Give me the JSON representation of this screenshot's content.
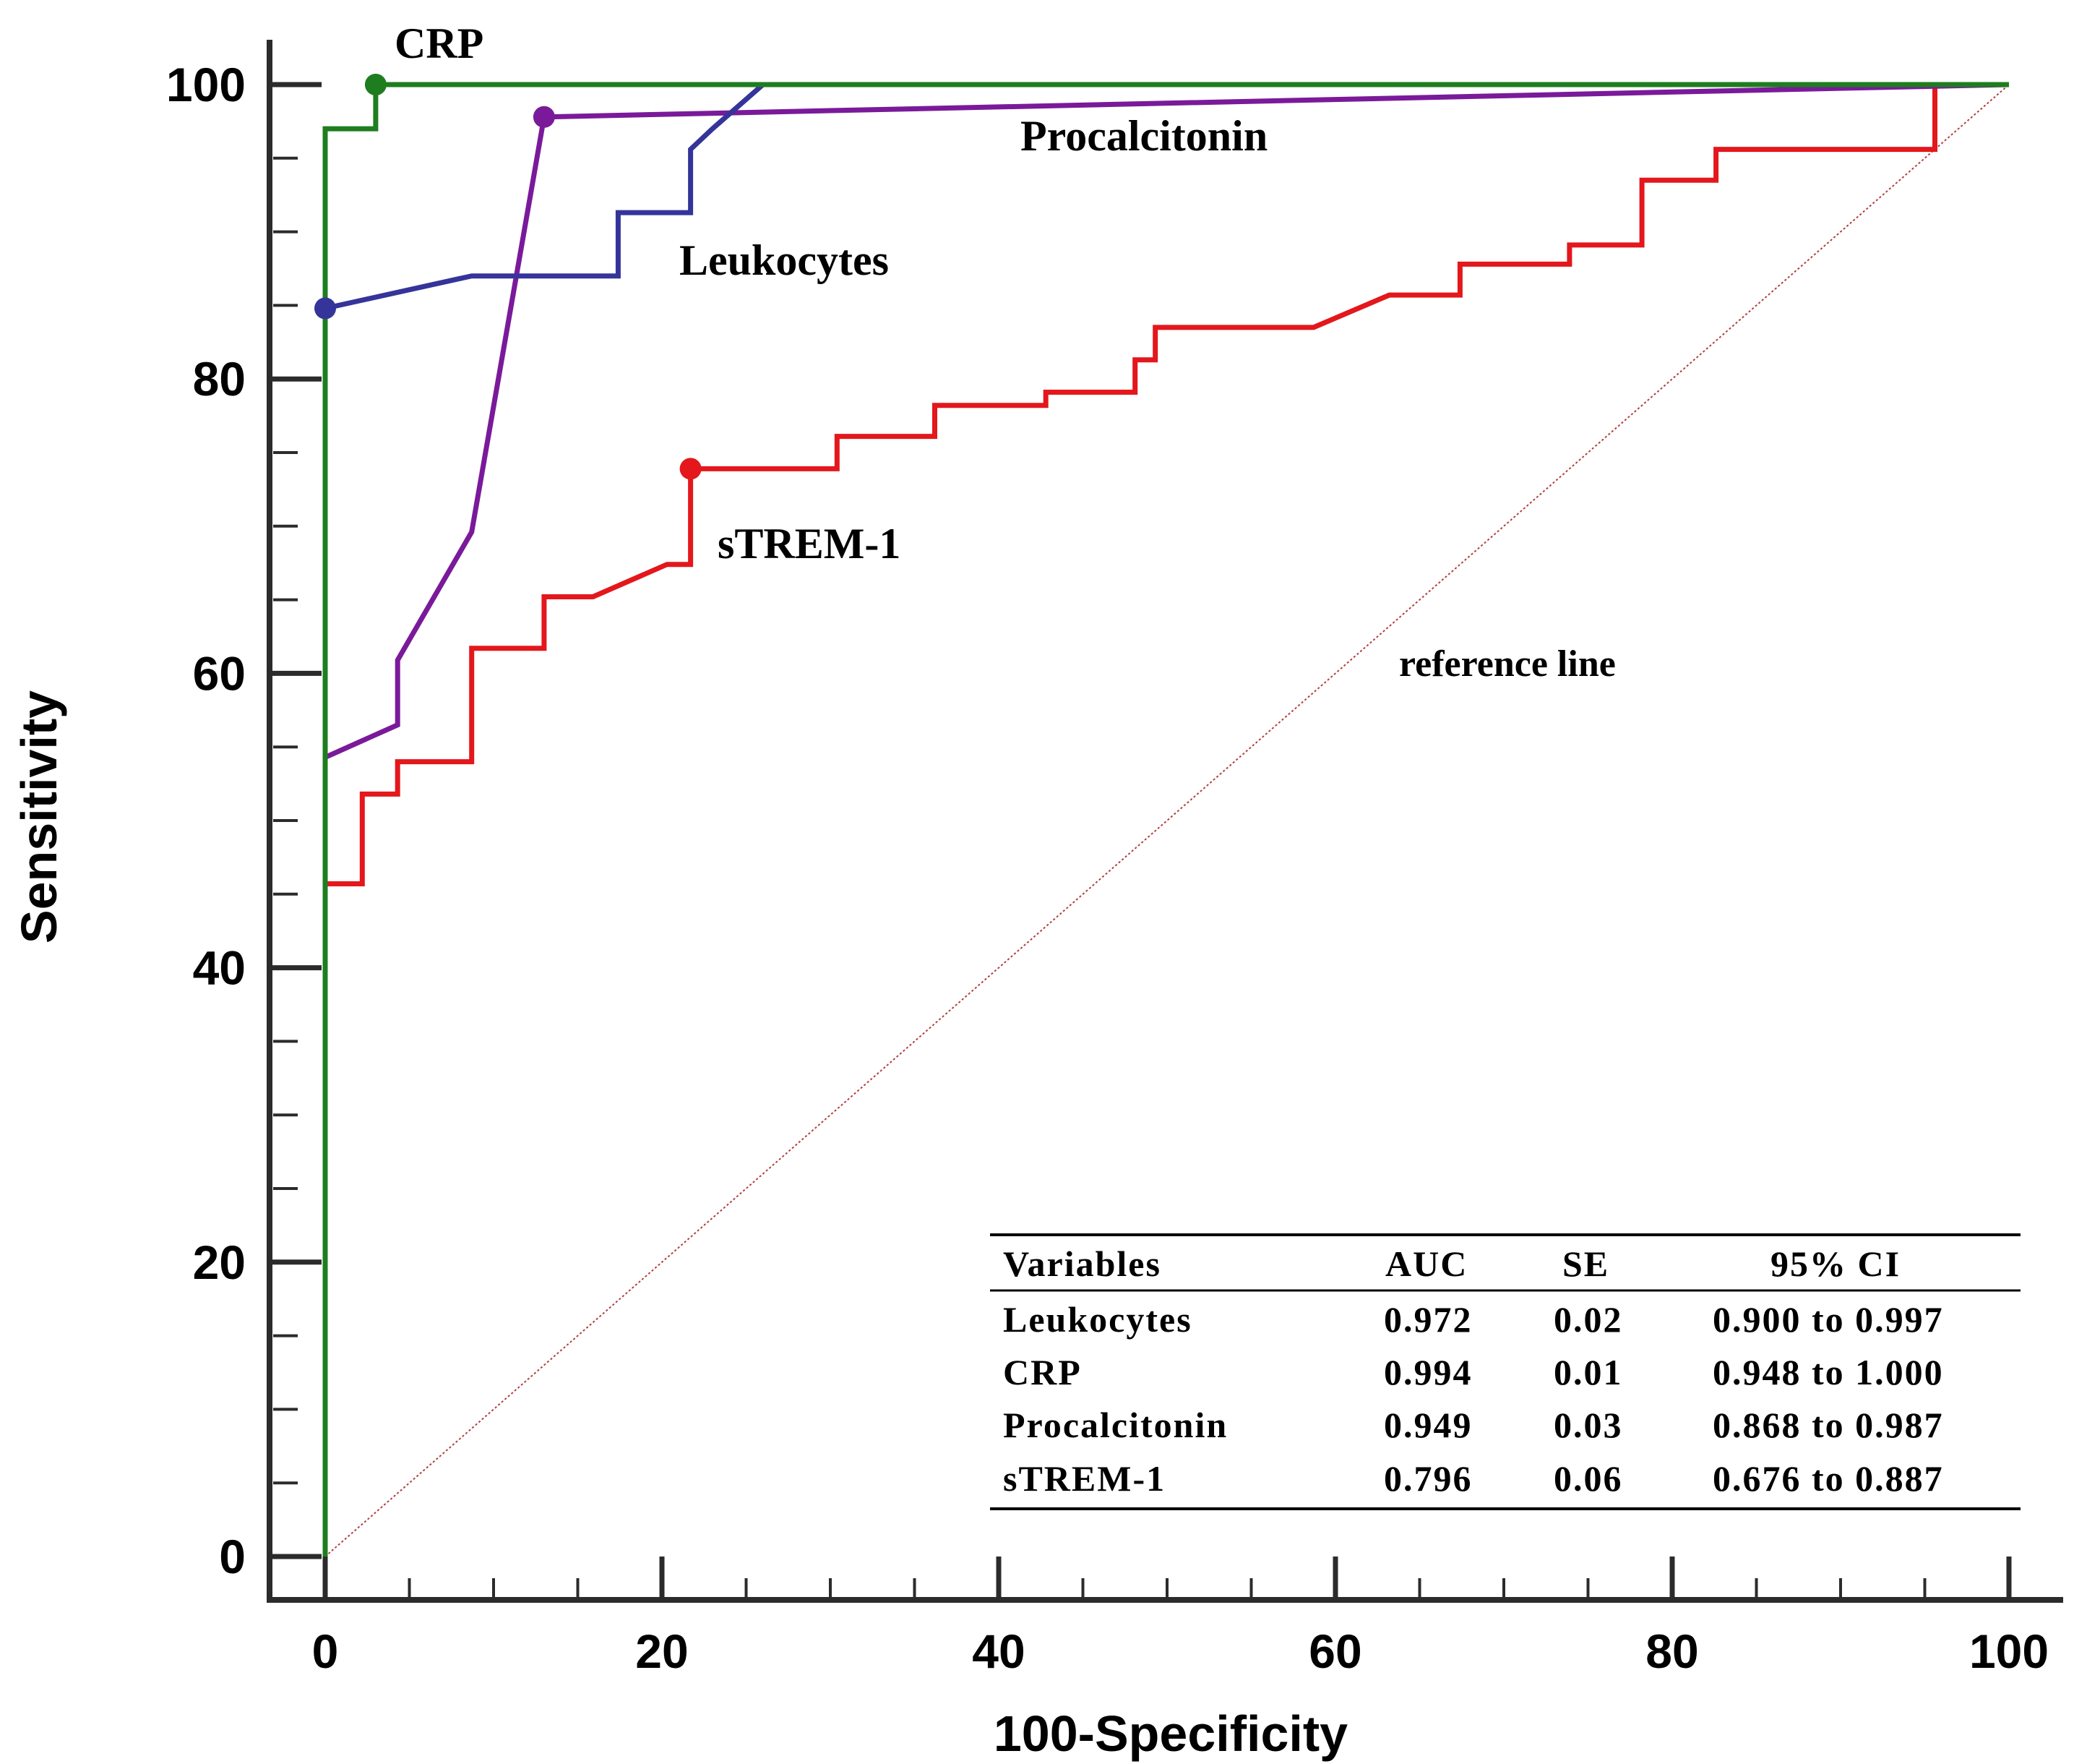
{
  "chart_data": {
    "type": "line",
    "title": "",
    "xlabel": "100-Specificity",
    "ylabel": "Sensitivity",
    "xlim": [
      0,
      100
    ],
    "ylim": [
      0,
      100
    ],
    "xticks": [
      "0",
      "20",
      "40",
      "60",
      "80",
      "100"
    ],
    "yticks": [
      "0",
      "20",
      "40",
      "60",
      "80",
      "100"
    ],
    "grid": false,
    "series": [
      {
        "name": "CRP",
        "color": "#1e7d1e",
        "points": [
          [
            0,
            0
          ],
          [
            0,
            97
          ],
          [
            3,
            97
          ],
          [
            3,
            100
          ],
          [
            100,
            100
          ]
        ],
        "marker": [
          3,
          100
        ]
      },
      {
        "name": "Leukocytes",
        "color": "#35349a",
        "points": [
          [
            0,
            0
          ],
          [
            0,
            84.8
          ],
          [
            8.7,
            87
          ],
          [
            17.4,
            87
          ],
          [
            17.4,
            91.3
          ],
          [
            21.7,
            91.3
          ],
          [
            21.7,
            95.6
          ],
          [
            23,
            97
          ],
          [
            26,
            100
          ],
          [
            100,
            100
          ]
        ],
        "marker": [
          0,
          84.8
        ]
      },
      {
        "name": "Procalcitonin",
        "color": "#7a1a9a",
        "points": [
          [
            0,
            0
          ],
          [
            0,
            45.7
          ],
          [
            0,
            54.3
          ],
          [
            4.3,
            56.5
          ],
          [
            4.3,
            60.9
          ],
          [
            8.7,
            69.6
          ],
          [
            13,
            97.8
          ],
          [
            100,
            100
          ]
        ],
        "marker": [
          13,
          97.8
        ]
      },
      {
        "name": "sTREM-1",
        "color": "#e3171c",
        "points": [
          [
            0,
            0
          ],
          [
            0,
            45.7
          ],
          [
            2.2,
            45.7
          ],
          [
            2.2,
            51.8
          ],
          [
            4.3,
            51.8
          ],
          [
            4.3,
            54
          ],
          [
            8.7,
            54
          ],
          [
            8.7,
            61.7
          ],
          [
            13,
            61.7
          ],
          [
            13,
            65.2
          ],
          [
            15.9,
            65.2
          ],
          [
            20.3,
            67.4
          ],
          [
            21.7,
            67.4
          ],
          [
            21.7,
            73.9
          ],
          [
            30.4,
            73.9
          ],
          [
            30.4,
            76.1
          ],
          [
            36.2,
            76.1
          ],
          [
            36.2,
            78.2
          ],
          [
            42.8,
            78.2
          ],
          [
            42.8,
            79.1
          ],
          [
            48.1,
            79.1
          ],
          [
            48.1,
            81.3
          ],
          [
            49.3,
            81.3
          ],
          [
            49.3,
            83.5
          ],
          [
            58.7,
            83.5
          ],
          [
            63.2,
            85.7
          ],
          [
            67.4,
            85.7
          ],
          [
            67.4,
            87.8
          ],
          [
            73.9,
            87.8
          ],
          [
            73.9,
            89.1
          ],
          [
            78.2,
            89.1
          ],
          [
            78.2,
            93.5
          ],
          [
            82.6,
            93.5
          ],
          [
            82.6,
            95.6
          ],
          [
            95.6,
            95.6
          ],
          [
            95.6,
            100
          ],
          [
            100,
            100
          ]
        ],
        "marker": [
          21.7,
          73.9
        ]
      }
    ],
    "reference_line": {
      "label": "reference line",
      "color": "#b04040",
      "points": [
        [
          0,
          0
        ],
        [
          100,
          100
        ]
      ]
    },
    "annotations": [
      {
        "text": "CRP",
        "series": "CRP"
      },
      {
        "text": "Leukocytes",
        "series": "Leukocytes"
      },
      {
        "text": "Procalcitonin",
        "series": "Procalcitonin"
      },
      {
        "text": "sTREM-1",
        "series": "sTREM-1"
      },
      {
        "text": "reference line",
        "series": "reference"
      }
    ],
    "table": {
      "headers": [
        "Variables",
        "AUC",
        "SE",
        "95% CI"
      ],
      "rows": [
        [
          "Leukocytes",
          "0.972",
          "0.02",
          "0.900 to 0.997"
        ],
        [
          "CRP",
          "0.994",
          "0.01",
          "0.948 to 1.000"
        ],
        [
          "Procalcitonin",
          "0.949",
          "0.03",
          "0.868 to 0.987"
        ],
        [
          "sTREM-1",
          "0.796",
          "0.06",
          "0.676 to 0.887"
        ]
      ]
    }
  }
}
